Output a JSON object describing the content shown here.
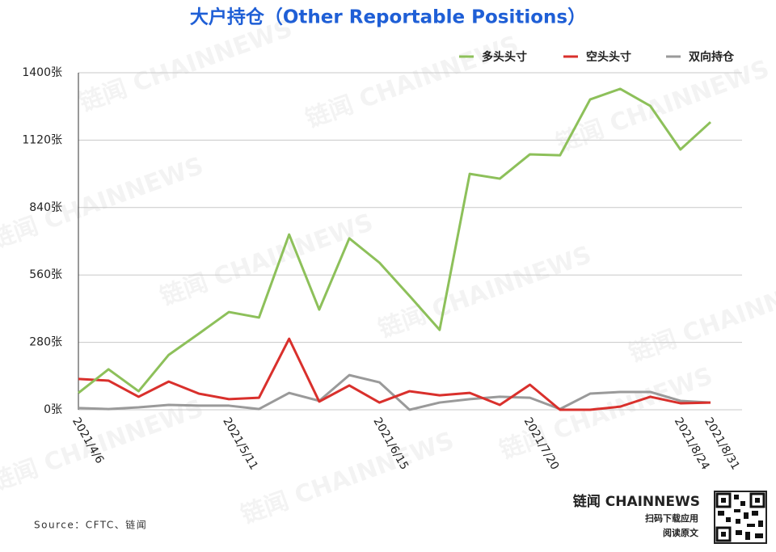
{
  "chart_data": {
    "type": "line",
    "title": "大户持仓（Other Reportable Positions）",
    "source": "Source：CFTC、链闻",
    "brand": "链闻 CHAINNEWS",
    "brand_sub1": "扫码下载应用",
    "brand_sub2": "阅读原文",
    "watermark": "链闻 CHAINNEWS",
    "categories": [
      "2021/4/6",
      null,
      null,
      null,
      null,
      "2021/5/11",
      null,
      null,
      null,
      null,
      "2021/6/15",
      null,
      null,
      null,
      null,
      "2021/7/20",
      null,
      null,
      null,
      null,
      "2021/8/24",
      "2021/8/31"
    ],
    "ylim": [
      0,
      1400
    ],
    "yticks": [
      {
        "value": 0,
        "label": "0张"
      },
      {
        "value": 280,
        "label": "280张"
      },
      {
        "value": 560,
        "label": "560张"
      },
      {
        "value": 840,
        "label": "840张"
      },
      {
        "value": 1120,
        "label": "1120张"
      },
      {
        "value": 1400,
        "label": "1400张"
      }
    ],
    "grid": true,
    "legend": "top-right",
    "series": [
      {
        "name": "多头头寸",
        "color": "#8dc05a",
        "values": [
          70,
          168,
          77,
          228,
          316,
          406,
          383,
          728,
          416,
          712,
          611,
          473,
          332,
          980,
          960,
          1061,
          1057,
          1289,
          1333,
          1262,
          1081,
          1195
        ]
      },
      {
        "name": "空头头寸",
        "color": "#d9302c",
        "values": [
          128,
          121,
          54,
          117,
          67,
          44,
          50,
          295,
          34,
          101,
          30,
          77,
          60,
          70,
          20,
          104,
          0,
          0,
          13,
          54,
          27,
          30
        ]
      },
      {
        "name": "双向持仓",
        "color": "#9a9a9a",
        "values": [
          7,
          3,
          10,
          20,
          17,
          17,
          3,
          70,
          37,
          144,
          114,
          0,
          30,
          44,
          54,
          50,
          3,
          67,
          74,
          74,
          37,
          30
        ]
      }
    ]
  }
}
